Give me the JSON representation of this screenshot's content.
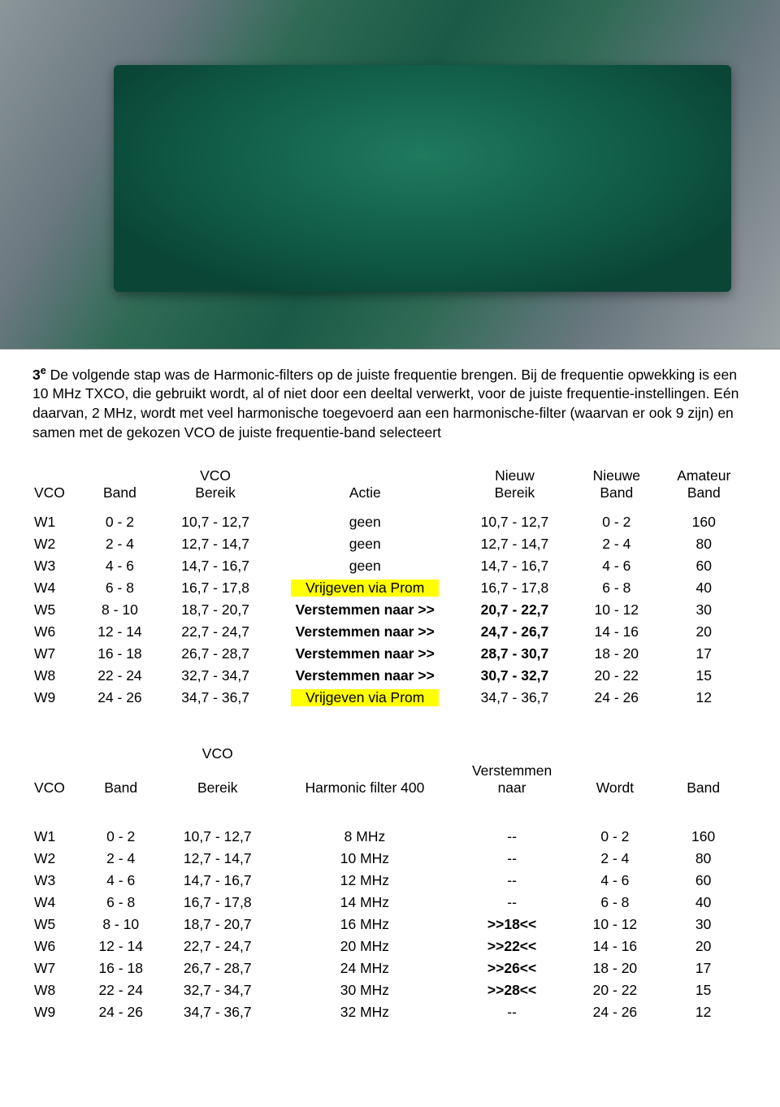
{
  "paragraph": {
    "line": "3ᵉ De volgende stap was de Harmonic-filters op de juiste frequentie brengen. Bij de frequentie opwekking is een 10 MHz TXCO, die gebruikt wordt, al of niet door een deeltal verwerkt, voor de juiste frequentie-instellingen. Eén daarvan, 2 MHz, wordt met veel harmonische toegevoerd aan een harmonische-filter (waarvan er ook 9 zijn) en samen met de gekozen VCO de juiste frequentie-band selecteert",
    "line1_lead": "3",
    "line1_sup": "e",
    "line1_rest": " De volgende stap was de Harmonic-filters op de juiste frequentie brengen. Bij de frequentie opwekking is een 10 MHz TXCO, die gebruikt wordt, al of niet door een deeltal verwerkt, voor de juiste frequentie-instellingen. Eén daarvan, 2 MHz, wordt met veel harmonische toegevoerd aan een harmonische-filter (waarvan er ook 9 zijn) en samen met de gekozen VCO de juiste frequentie-band selecteert"
  },
  "table1": {
    "headers": {
      "vco": "VCO",
      "band": "Band",
      "range_top": "VCO",
      "range_bot": "Bereik",
      "actie": "Actie",
      "new_top": "Nieuw",
      "new_bot": "Bereik",
      "nb_top": "Nieuwe",
      "nb_bot": "Band",
      "ab_top": "Amateur",
      "ab_bot": "Band"
    },
    "rows": [
      {
        "vco": "W1",
        "band": "0 - 2",
        "range": "10,7 - 12,7",
        "actie": "geen",
        "actie_hl": false,
        "actie_bold": false,
        "new": "10,7 - 12,7",
        "nb": "0 - 2",
        "ab": "160"
      },
      {
        "vco": "W2",
        "band": "2 - 4",
        "range": "12,7 - 14,7",
        "actie": "geen",
        "actie_hl": false,
        "actie_bold": false,
        "new": "12,7 - 14,7",
        "nb": "2 - 4",
        "ab": "80"
      },
      {
        "vco": "W3",
        "band": "4 - 6",
        "range": "14,7 - 16,7",
        "actie": "geen",
        "actie_hl": false,
        "actie_bold": false,
        "new": "14,7 - 16,7",
        "nb": "4 - 6",
        "ab": "60"
      },
      {
        "vco": "W4",
        "band": "6 - 8",
        "range": "16,7 - 17,8",
        "actie": "Vrijgeven via Prom",
        "actie_hl": true,
        "actie_bold": false,
        "new": "16,7 - 17,8",
        "nb": "6 - 8",
        "ab": "40"
      },
      {
        "vco": "W5",
        "band": "8 - 10",
        "range": "18,7 - 20,7",
        "actie": "Verstemmen naar >>",
        "actie_hl": false,
        "actie_bold": true,
        "new": "20,7 - 22,7",
        "new_bold": true,
        "nb": "10 - 12",
        "ab": "30"
      },
      {
        "vco": "W6",
        "band": "12 - 14",
        "range": "22,7 - 24,7",
        "actie": "Verstemmen naar >>",
        "actie_hl": false,
        "actie_bold": true,
        "new": "24,7 - 26,7",
        "new_bold": true,
        "nb": "14 - 16",
        "ab": "20"
      },
      {
        "vco": "W7",
        "band": "16 - 18",
        "range": "26,7 - 28,7",
        "actie": "Verstemmen naar >>",
        "actie_hl": false,
        "actie_bold": true,
        "new": "28,7 - 30,7",
        "new_bold": true,
        "nb": "18 - 20",
        "ab": "17"
      },
      {
        "vco": "W8",
        "band": "22 - 24",
        "range": "32,7 - 34,7",
        "actie": "Verstemmen naar >>",
        "actie_hl": false,
        "actie_bold": true,
        "new": "30,7 - 32,7",
        "new_bold": true,
        "nb": "20 - 22",
        "ab": "15"
      },
      {
        "vco": "W9",
        "band": "24 - 26",
        "range": "34,7 - 36,7",
        "actie": "Vrijgeven via Prom",
        "actie_hl": true,
        "actie_bold": false,
        "new": "34,7 - 36,7",
        "nb": "24 - 26",
        "ab": "12"
      }
    ]
  },
  "table2": {
    "headers": {
      "vco": "VCO",
      "band": "Band",
      "range_top": "VCO",
      "range_bot": "Bereik",
      "hf": "Harmonic filter 400",
      "vn_top": "Verstemmen",
      "vn_bot": "naar",
      "wordt": "Wordt",
      "band2": "Band"
    },
    "rows": [
      {
        "vco": "W1",
        "band": "0 - 2",
        "range": "10,7 - 12,7",
        "hf": "8 MHz",
        "vn": "--",
        "wordt": "0 - 2",
        "band2": "160"
      },
      {
        "vco": "W2",
        "band": "2 - 4",
        "range": "12,7 - 14,7",
        "hf": "10 MHz",
        "vn": "--",
        "wordt": "2 - 4",
        "band2": "80"
      },
      {
        "vco": "W3",
        "band": "4 - 6",
        "range": "14,7 - 16,7",
        "hf": "12 MHz",
        "vn": "--",
        "wordt": "4 - 6",
        "band2": "60"
      },
      {
        "vco": "W4",
        "band": "6 - 8",
        "range": "16,7 - 17,8",
        "hf": "14 MHz",
        "vn": "--",
        "wordt": "6 - 8",
        "band2": "40"
      },
      {
        "vco": "W5",
        "band": "8 - 10",
        "range": "18,7 - 20,7",
        "hf": "16 MHz",
        "vn": ">>18<<",
        "vn_bold": true,
        "wordt": "10 - 12",
        "band2": "30"
      },
      {
        "vco": "W6",
        "band": "12 - 14",
        "range": "22,7 - 24,7",
        "hf": "20 MHz",
        "vn": ">>22<<",
        "vn_bold": true,
        "wordt": "14 - 16",
        "band2": "20"
      },
      {
        "vco": "W7",
        "band": "16 - 18",
        "range": "26,7 - 28,7",
        "hf": "24 MHz",
        "vn": ">>26<<",
        "vn_bold": true,
        "wordt": "18 - 20",
        "band2": "17"
      },
      {
        "vco": "W8",
        "band": "22 - 24",
        "range": "32,7 - 34,7",
        "hf": "30 MHz",
        "vn": ">>28<<",
        "vn_bold": true,
        "wordt": "20 - 22",
        "band2": "15"
      },
      {
        "vco": "W9",
        "band": "24 - 26",
        "range": "34,7 - 36,7",
        "hf": "32 MHz",
        "vn": "--",
        "wordt": "24 - 26",
        "band2": "12"
      }
    ]
  },
  "colors": {
    "highlight": "#ffff00",
    "text": "#000000",
    "bg": "#ffffff"
  }
}
